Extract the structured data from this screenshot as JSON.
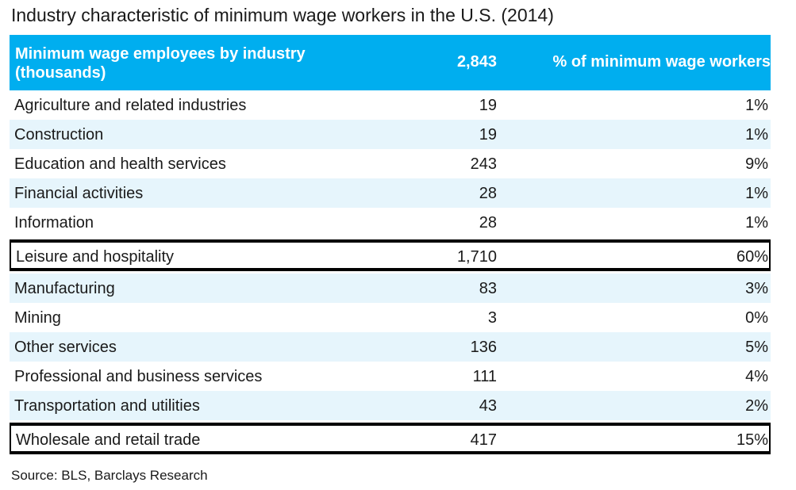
{
  "chart_data": {
    "type": "table",
    "title": "Industry characteristic of minimum wage workers in the U.S. (2014)",
    "columns": [
      "Minimum wage employees by industry (thousands)",
      "2,843",
      "% of minimum wage workers"
    ],
    "rows": [
      {
        "industry": "Agriculture and related industries",
        "value": "19",
        "pct": "1%",
        "highlight": false
      },
      {
        "industry": "Construction",
        "value": "19",
        "pct": "1%",
        "highlight": false
      },
      {
        "industry": "Education and health services",
        "value": "243",
        "pct": "9%",
        "highlight": false
      },
      {
        "industry": "Financial activities",
        "value": "28",
        "pct": "1%",
        "highlight": false
      },
      {
        "industry": "Information",
        "value": "28",
        "pct": "1%",
        "highlight": false
      },
      {
        "industry": "Leisure and hospitality",
        "value": "1,710",
        "pct": "60%",
        "highlight": true
      },
      {
        "industry": "Manufacturing",
        "value": "83",
        "pct": "3%",
        "highlight": false
      },
      {
        "industry": "Mining",
        "value": "3",
        "pct": "0%",
        "highlight": false
      },
      {
        "industry": "Other services",
        "value": "136",
        "pct": "5%",
        "highlight": false
      },
      {
        "industry": "Professional and business services",
        "value": "111",
        "pct": "4%",
        "highlight": false
      },
      {
        "industry": "Transportation and utilities",
        "value": "43",
        "pct": "2%",
        "highlight": false
      },
      {
        "industry": "Wholesale and retail trade",
        "value": "417",
        "pct": "15%",
        "highlight": true
      }
    ],
    "source": "Source: BLS, Barclays Research"
  },
  "colors": {
    "header_bg": "#00aeef",
    "alt_row_bg": "#e6f5fc",
    "highlight_border": "#000000"
  }
}
